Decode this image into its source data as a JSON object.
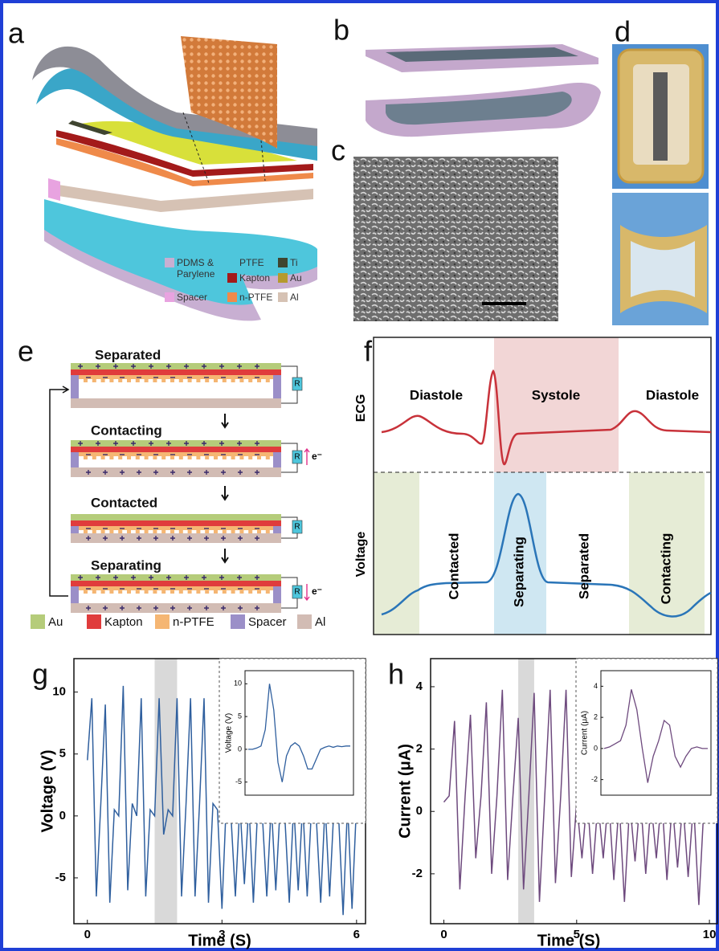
{
  "panel_labels": [
    "a",
    "b",
    "c",
    "d",
    "e",
    "f",
    "g",
    "h"
  ],
  "panel_a": {
    "legend": [
      {
        "label": "PDMS & Parylene",
        "color": "#c8afd2"
      },
      {
        "label": "PTFE",
        "color": "#4ec6dc"
      },
      {
        "label": "Ti",
        "color": "#3f4530"
      },
      {
        "label": "Kapton",
        "color": "#a31a1a"
      },
      {
        "label": "Au",
        "color": "#b59a2e"
      },
      {
        "label": "Spacer",
        "color": "#e8a3e0"
      },
      {
        "label": "n-PTFE",
        "color": "#ef8a4a"
      },
      {
        "label": "Al",
        "color": "#d6c2b4"
      }
    ]
  },
  "panel_e": {
    "states": [
      "Separated",
      "Contacting",
      "Contacted",
      "Separating"
    ],
    "resistor": "R",
    "electron": "e⁻",
    "legend": [
      {
        "label": "Au",
        "color": "#b5cc7a"
      },
      {
        "label": "Kapton",
        "color": "#e03c3c"
      },
      {
        "label": "n-PTFE",
        "color": "#f5b673"
      },
      {
        "label": "Spacer",
        "color": "#9b8fc8"
      },
      {
        "label": "Al",
        "color": "#d2bcb4"
      }
    ]
  },
  "panel_f": {
    "ecg_label": "ECG",
    "voltage_label": "Voltage",
    "phases_top": [
      "Diastole",
      "Systole",
      "Diastole"
    ],
    "phases_bottom": [
      "Contacted",
      "Separating",
      "Separated",
      "Contacting"
    ]
  },
  "chart_data": [
    {
      "type": "line",
      "xlabel": "Time (S)",
      "ylabel": "Voltage (V)",
      "color": "#2f5f9e",
      "xlim": [
        -0.3,
        6.2
      ],
      "ylim": [
        -8.7,
        12.7
      ],
      "xticks": [
        0,
        3,
        6
      ],
      "yticks": [
        -5,
        0,
        5,
        10
      ],
      "highlight": [
        1.5,
        2.0
      ],
      "x": [
        0.0,
        0.1,
        0.2,
        0.3,
        0.4,
        0.5,
        0.6,
        0.7,
        0.8,
        0.9,
        1.0,
        1.1,
        1.2,
        1.3,
        1.4,
        1.5,
        1.6,
        1.7,
        1.8,
        1.9,
        2.0,
        2.1,
        2.2,
        2.3,
        2.4,
        2.5,
        2.6,
        2.7,
        2.8,
        2.9,
        3.0,
        3.1,
        3.2,
        3.3,
        3.4,
        3.5,
        3.6,
        3.7,
        3.8,
        3.9,
        4.0,
        4.1,
        4.2,
        4.3,
        4.4,
        4.5,
        4.6,
        4.7,
        4.8,
        4.9,
        5.0,
        5.1,
        5.2,
        5.3,
        5.4,
        5.5,
        5.6,
        5.7,
        5.8,
        5.9,
        6.0
      ],
      "values": [
        4.5,
        9.5,
        -6.5,
        1,
        9,
        -7,
        0.5,
        0,
        10.5,
        -6,
        1,
        0,
        9.5,
        -6.5,
        0.5,
        0,
        9.5,
        -1.5,
        0.5,
        0,
        9.5,
        -6.5,
        1,
        9.5,
        -6.5,
        1,
        9.5,
        -7,
        1,
        0.5,
        -7.5,
        1.5,
        0,
        -6.5,
        1,
        -5.5,
        1,
        -7,
        1,
        0,
        -6.5,
        1,
        -6,
        1,
        0,
        -7,
        1,
        -6,
        1,
        -6.5,
        1,
        0,
        -7,
        1,
        -6.5,
        1,
        0,
        -8,
        1,
        -7.5,
        1
      ],
      "inset": {
        "ylabel": "Voltage (V)",
        "ylim": [
          -7,
          12
        ],
        "yticks": [
          -5,
          0,
          5,
          10
        ],
        "values": [
          0,
          0,
          0.2,
          0.5,
          3,
          10,
          6,
          -2,
          -5,
          -1,
          0.5,
          1,
          0.5,
          -1,
          -3,
          -3,
          -1.5,
          0,
          0.3,
          0.5,
          0.3,
          0.5,
          0.4,
          0.5,
          0.5
        ]
      }
    },
    {
      "type": "line",
      "xlabel": "Time (S)",
      "ylabel": "Current (μA)",
      "color": "#6e4a7e",
      "xlim": [
        -0.5,
        10.3
      ],
      "ylim": [
        -3.6,
        4.9
      ],
      "xticks": [
        0,
        5,
        10
      ],
      "yticks": [
        -2,
        0,
        2,
        4
      ],
      "highlight": [
        2.8,
        3.4
      ],
      "x": [
        0,
        0.2,
        0.4,
        0.6,
        0.8,
        1.0,
        1.2,
        1.4,
        1.6,
        1.8,
        2.0,
        2.2,
        2.4,
        2.6,
        2.8,
        3.0,
        3.2,
        3.4,
        3.6,
        3.8,
        4.0,
        4.2,
        4.4,
        4.6,
        4.8,
        5.0,
        5.2,
        5.4,
        5.6,
        5.8,
        6.0,
        6.2,
        6.4,
        6.6,
        6.8,
        7.0,
        7.2,
        7.4,
        7.6,
        7.8,
        8.0,
        8.2,
        8.4,
        8.6,
        8.8,
        9.0,
        9.2,
        9.4,
        9.6,
        9.8,
        10.0
      ],
      "values": [
        0.3,
        0.5,
        2.9,
        -2.5,
        0.5,
        3.1,
        -1.5,
        0.5,
        3.5,
        -2,
        0.5,
        3.9,
        -2.2,
        0.5,
        3.0,
        -2.5,
        0.5,
        3.8,
        -2.9,
        0.5,
        3.9,
        -2.3,
        0.5,
        3.9,
        -2.1,
        0.3,
        -1.5,
        0.5,
        -2,
        0.3,
        -1.5,
        0.5,
        -2.2,
        0.3,
        -2.9,
        0.3,
        -1.6,
        0.5,
        -2,
        0.3,
        -1.5,
        0.5,
        -2.2,
        0.3,
        -1.8,
        0.3,
        -2.1,
        0.3,
        -3,
        0.3,
        0.4
      ],
      "inset": {
        "ylabel": "Current (μA)",
        "ylim": [
          -3,
          5
        ],
        "yticks": [
          -2,
          0,
          2,
          4
        ],
        "values": [
          0,
          0.1,
          0.3,
          0.5,
          1.5,
          3.8,
          2.5,
          0,
          -2.2,
          -0.5,
          0.5,
          1.8,
          1.5,
          -0.5,
          -1.2,
          -0.5,
          0,
          0.1,
          0,
          0
        ]
      }
    }
  ]
}
